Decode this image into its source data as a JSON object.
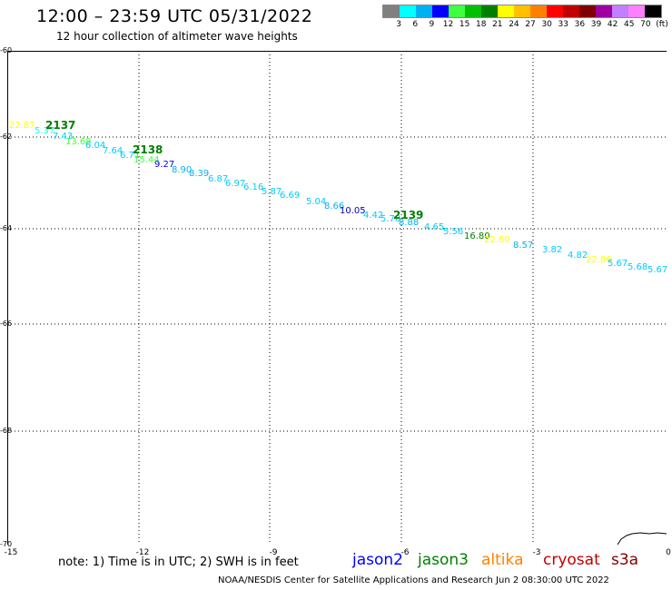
{
  "title": "12:00 – 23:59 UTC 05/31/2022",
  "subtitle": "12 hour collection of altimeter wave heights",
  "scale": {
    "colors": [
      "#808080",
      "#00ffff",
      "#00b0f0",
      "#0000ff",
      "#40ff40",
      "#00c000",
      "#008000",
      "#ffff00",
      "#ffc000",
      "#ff8000",
      "#ff0000",
      "#c00000",
      "#800000",
      "#a000a0",
      "#c080ff",
      "#ff80ff",
      "#000000"
    ],
    "labels": [
      "3",
      "6",
      "9",
      "12",
      "15",
      "18",
      "21",
      "24",
      "27",
      "30",
      "33",
      "36",
      "39",
      "42",
      "45",
      "70",
      "(ft)"
    ]
  },
  "axes": {
    "y_labels": [
      "-60",
      "-62",
      "-64",
      "-66",
      "-68",
      "-70"
    ],
    "x_labels": [
      "-15",
      "-12",
      "-9",
      "-6",
      "-3",
      "0"
    ]
  },
  "track_labels": [
    {
      "text": "2137",
      "color": "#008000"
    },
    {
      "text": "2138",
      "color": "#008000"
    },
    {
      "text": "2139",
      "color": "#008000"
    }
  ],
  "wave_heights": [
    {
      "text": "22.87",
      "color": "#ffff00"
    },
    {
      "text": "5.37",
      "color": "#00ffff"
    },
    {
      "text": "7.43",
      "color": "#00ccff"
    },
    {
      "text": "13.68",
      "color": "#40ff40"
    },
    {
      "text": "6.04",
      "color": "#00ccff"
    },
    {
      "text": "7.64",
      "color": "#00ccff"
    },
    {
      "text": "6.71",
      "color": "#00ccff"
    },
    {
      "text": "15.44",
      "color": "#40ff40"
    },
    {
      "text": "9.27",
      "color": "#0000ff"
    },
    {
      "text": "8.90",
      "color": "#00b0f0"
    },
    {
      "text": "8.39",
      "color": "#00b0f0"
    },
    {
      "text": "6.87",
      "color": "#00ccff"
    },
    {
      "text": "6.97",
      "color": "#00ccff"
    },
    {
      "text": "6.16",
      "color": "#00ccff"
    },
    {
      "text": "5.87",
      "color": "#00ccff"
    },
    {
      "text": "6.69",
      "color": "#00ccff"
    },
    {
      "text": "5.04",
      "color": "#00ccff"
    },
    {
      "text": "8.66",
      "color": "#00b0f0"
    },
    {
      "text": "10.05",
      "color": "#0000c0"
    },
    {
      "text": "4.42",
      "color": "#00ccff"
    },
    {
      "text": "5.78",
      "color": "#00ccff"
    },
    {
      "text": "8.88",
      "color": "#00b0f0"
    },
    {
      "text": "4.65",
      "color": "#00ccff"
    },
    {
      "text": "5.56",
      "color": "#00ccff"
    },
    {
      "text": "16.80",
      "color": "#008000"
    },
    {
      "text": "22.60",
      "color": "#ffff00"
    },
    {
      "text": "8.57",
      "color": "#00b0f0"
    },
    {
      "text": "3.82",
      "color": "#00ccff"
    },
    {
      "text": "4.82",
      "color": "#00ccff"
    },
    {
      "text": "22.86",
      "color": "#ffff00"
    },
    {
      "text": "5.67",
      "color": "#00ccff"
    },
    {
      "text": "5.68",
      "color": "#00ccff"
    },
    {
      "text": "5.67",
      "color": "#00ccff"
    }
  ],
  "note": "note:  1) Time is in UTC;  2) SWH is in feet",
  "legend": [
    {
      "text": "jason2",
      "color": "#0000ff"
    },
    {
      "text": "jason3",
      "color": "#008000"
    },
    {
      "text": "altika",
      "color": "#ff8000"
    },
    {
      "text": "cryosat",
      "color": "#c00000"
    },
    {
      "text": "s3a",
      "color": "#800000"
    }
  ],
  "footer": "NOAA/NESDIS Center for Satellite Applications and Research     Jun  2 08:30:00 UTC 2022"
}
